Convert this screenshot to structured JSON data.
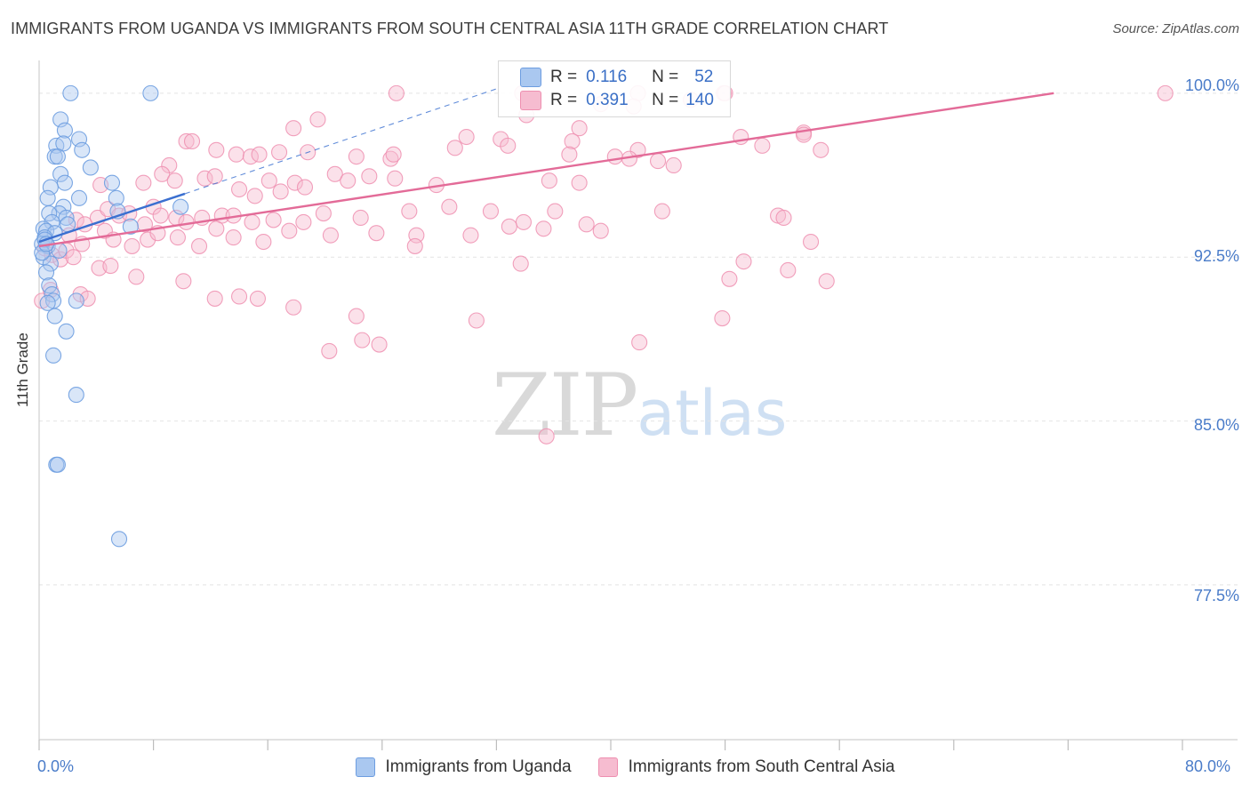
{
  "header": {
    "title": "IMMIGRANTS FROM UGANDA VS IMMIGRANTS FROM SOUTH CENTRAL ASIA 11TH GRADE CORRELATION CHART",
    "source": "Source: ZipAtlas.com"
  },
  "watermark": {
    "zip": "ZIP",
    "atlas": "atlas"
  },
  "legend": {
    "r_label": "R =",
    "n_label": "N =",
    "series1": {
      "r": "0.116",
      "n": "52"
    },
    "series2": {
      "r": "0.391",
      "n": "140"
    }
  },
  "bottom_legend": {
    "series1": "Immigrants from Uganda",
    "series2": "Immigrants from South Central Asia"
  },
  "colors": {
    "series1_fill": "#aac8f0",
    "series1_stroke": "#6d9de0",
    "series1_line": "#3a6fd0",
    "series2_fill": "#f6bcd0",
    "series2_stroke": "#ee8fb0",
    "series2_line": "#e36b98",
    "axis_text": "#4a7cc9",
    "grid": "#e4e4e4"
  },
  "chart_data": {
    "type": "scatter",
    "title": "IMMIGRANTS FROM UGANDA VS IMMIGRANTS FROM SOUTH CENTRAL ASIA 11TH GRADE CORRELATION CHART",
    "xlabel": "",
    "ylabel": "11th Grade",
    "xlim": [
      0,
      80
    ],
    "ylim": [
      70.5,
      101.5
    ],
    "x_tick_labels": [
      "0.0%",
      "80.0%"
    ],
    "y_ticks": [
      77.5,
      85.0,
      92.5,
      100.0
    ],
    "y_tick_labels": [
      "77.5%",
      "85.0%",
      "92.5%",
      "100.0%"
    ],
    "x_tick_marks": [
      0,
      8,
      16,
      24,
      32,
      40,
      48,
      56,
      64,
      72,
      80
    ],
    "series": [
      {
        "name": "Immigrants from Uganda",
        "r": 0.116,
        "n": 52,
        "trend": {
          "x": [
            0.0,
            10.2
          ],
          "y": [
            93.2,
            95.4
          ]
        },
        "trend_extension": {
          "x": [
            10.2,
            32.0
          ],
          "y": [
            95.4,
            100.2
          ]
        },
        "points": [
          [
            2.2,
            100.0
          ],
          [
            7.8,
            100.0
          ],
          [
            1.5,
            98.8
          ],
          [
            1.8,
            98.3
          ],
          [
            2.8,
            97.9
          ],
          [
            1.2,
            97.6
          ],
          [
            1.7,
            97.7
          ],
          [
            3.0,
            97.4
          ],
          [
            1.1,
            97.1
          ],
          [
            1.3,
            97.1
          ],
          [
            3.6,
            96.6
          ],
          [
            1.5,
            96.3
          ],
          [
            5.1,
            95.9
          ],
          [
            1.8,
            95.9
          ],
          [
            0.8,
            95.7
          ],
          [
            0.6,
            95.2
          ],
          [
            2.8,
            95.2
          ],
          [
            5.4,
            95.2
          ],
          [
            1.7,
            94.8
          ],
          [
            9.9,
            94.8
          ],
          [
            5.5,
            94.6
          ],
          [
            1.4,
            94.5
          ],
          [
            0.7,
            94.5
          ],
          [
            1.9,
            94.3
          ],
          [
            0.9,
            94.1
          ],
          [
            2.0,
            94.0
          ],
          [
            6.4,
            93.9
          ],
          [
            0.3,
            93.8
          ],
          [
            0.5,
            93.7
          ],
          [
            1.1,
            93.6
          ],
          [
            0.4,
            93.4
          ],
          [
            0.2,
            93.1
          ],
          [
            0.6,
            93.0
          ],
          [
            1.4,
            92.8
          ],
          [
            0.3,
            92.5
          ],
          [
            0.8,
            92.2
          ],
          [
            0.5,
            91.8
          ],
          [
            0.7,
            91.2
          ],
          [
            0.9,
            90.8
          ],
          [
            1.0,
            90.5
          ],
          [
            0.6,
            90.4
          ],
          [
            2.6,
            90.5
          ],
          [
            1.1,
            89.8
          ],
          [
            1.9,
            89.1
          ],
          [
            1.0,
            88.0
          ],
          [
            2.6,
            86.2
          ],
          [
            1.2,
            83.0
          ],
          [
            1.3,
            83.0
          ],
          [
            5.6,
            79.6
          ],
          [
            0.4,
            93.3
          ],
          [
            0.2,
            92.7
          ],
          [
            0.5,
            93.1
          ]
        ]
      },
      {
        "name": "Immigrants from South Central Asia",
        "r": 0.391,
        "n": 140,
        "trend": {
          "x": [
            0.0,
            71.0
          ],
          "y": [
            93.0,
            100.0
          ]
        },
        "points": [
          [
            25.0,
            100.0
          ],
          [
            33.8,
            100.0
          ],
          [
            41.9,
            100.0
          ],
          [
            47.9,
            100.0
          ],
          [
            48.0,
            100.0
          ],
          [
            78.8,
            100.0
          ],
          [
            45.6,
            99.7
          ],
          [
            39.3,
            99.5
          ],
          [
            41.6,
            99.4
          ],
          [
            34.1,
            99.0
          ],
          [
            19.5,
            98.8
          ],
          [
            17.8,
            98.4
          ],
          [
            37.8,
            98.4
          ],
          [
            29.9,
            98.0
          ],
          [
            32.3,
            97.9
          ],
          [
            37.3,
            97.8
          ],
          [
            53.5,
            98.2
          ],
          [
            53.5,
            98.1
          ],
          [
            49.1,
            98.0
          ],
          [
            50.6,
            97.6
          ],
          [
            29.1,
            97.5
          ],
          [
            32.8,
            97.6
          ],
          [
            41.9,
            97.4
          ],
          [
            54.7,
            97.4
          ],
          [
            10.3,
            97.8
          ],
          [
            10.7,
            97.8
          ],
          [
            12.4,
            97.4
          ],
          [
            13.8,
            97.2
          ],
          [
            14.8,
            97.1
          ],
          [
            15.4,
            97.2
          ],
          [
            16.8,
            97.3
          ],
          [
            18.8,
            97.3
          ],
          [
            22.2,
            97.1
          ],
          [
            24.6,
            97.0
          ],
          [
            24.8,
            97.2
          ],
          [
            37.1,
            97.2
          ],
          [
            40.3,
            97.1
          ],
          [
            41.3,
            97.0
          ],
          [
            43.3,
            96.9
          ],
          [
            44.4,
            96.7
          ],
          [
            4.3,
            95.8
          ],
          [
            7.3,
            95.9
          ],
          [
            9.1,
            96.7
          ],
          [
            8.6,
            96.3
          ],
          [
            9.5,
            96.0
          ],
          [
            11.6,
            96.1
          ],
          [
            12.3,
            96.2
          ],
          [
            14.0,
            95.6
          ],
          [
            15.1,
            95.3
          ],
          [
            16.1,
            96.0
          ],
          [
            16.9,
            95.5
          ],
          [
            17.9,
            95.9
          ],
          [
            18.6,
            95.7
          ],
          [
            20.7,
            96.3
          ],
          [
            21.6,
            96.0
          ],
          [
            23.1,
            96.2
          ],
          [
            24.9,
            96.1
          ],
          [
            27.8,
            95.8
          ],
          [
            35.7,
            96.0
          ],
          [
            37.8,
            95.9
          ],
          [
            2.6,
            94.2
          ],
          [
            3.2,
            94.0
          ],
          [
            4.1,
            94.3
          ],
          [
            4.8,
            94.7
          ],
          [
            5.6,
            94.4
          ],
          [
            6.3,
            94.5
          ],
          [
            7.4,
            94.0
          ],
          [
            8.0,
            94.8
          ],
          [
            8.5,
            94.4
          ],
          [
            9.6,
            94.3
          ],
          [
            10.3,
            94.1
          ],
          [
            11.4,
            94.3
          ],
          [
            12.8,
            94.4
          ],
          [
            13.6,
            94.4
          ],
          [
            14.9,
            94.1
          ],
          [
            16.4,
            94.2
          ],
          [
            18.5,
            94.1
          ],
          [
            19.9,
            94.5
          ],
          [
            22.5,
            94.3
          ],
          [
            25.9,
            94.6
          ],
          [
            28.7,
            94.8
          ],
          [
            31.6,
            94.6
          ],
          [
            33.9,
            94.1
          ],
          [
            36.1,
            94.6
          ],
          [
            38.3,
            94.0
          ],
          [
            43.6,
            94.6
          ],
          [
            51.7,
            94.4
          ],
          [
            52.1,
            94.3
          ],
          [
            2.1,
            93.5
          ],
          [
            3.0,
            93.1
          ],
          [
            4.6,
            93.7
          ],
          [
            5.2,
            93.3
          ],
          [
            6.5,
            93.0
          ],
          [
            7.6,
            93.3
          ],
          [
            8.3,
            93.6
          ],
          [
            9.7,
            93.4
          ],
          [
            11.2,
            93.0
          ],
          [
            12.4,
            93.8
          ],
          [
            13.6,
            93.4
          ],
          [
            15.7,
            93.2
          ],
          [
            17.5,
            93.7
          ],
          [
            20.4,
            93.5
          ],
          [
            23.6,
            93.6
          ],
          [
            26.4,
            93.5
          ],
          [
            30.2,
            93.5
          ],
          [
            32.9,
            93.9
          ],
          [
            35.3,
            93.8
          ],
          [
            39.3,
            93.7
          ],
          [
            0.4,
            92.9
          ],
          [
            0.9,
            92.6
          ],
          [
            1.5,
            92.4
          ],
          [
            1.9,
            92.8
          ],
          [
            2.4,
            92.5
          ],
          [
            4.2,
            92.0
          ],
          [
            5.0,
            92.1
          ],
          [
            6.8,
            91.6
          ],
          [
            10.1,
            91.4
          ],
          [
            12.3,
            90.6
          ],
          [
            14.0,
            90.7
          ],
          [
            15.3,
            90.6
          ],
          [
            17.8,
            90.2
          ],
          [
            22.2,
            89.8
          ],
          [
            30.6,
            89.6
          ],
          [
            47.8,
            89.7
          ],
          [
            48.3,
            91.5
          ],
          [
            55.1,
            91.4
          ],
          [
            42.0,
            88.6
          ],
          [
            23.8,
            88.5
          ],
          [
            20.3,
            88.2
          ],
          [
            22.6,
            88.7
          ],
          [
            49.3,
            92.3
          ],
          [
            52.4,
            91.9
          ],
          [
            33.7,
            92.2
          ],
          [
            54.0,
            93.2
          ],
          [
            0.8,
            91.0
          ],
          [
            2.9,
            90.8
          ],
          [
            3.4,
            90.6
          ],
          [
            26.3,
            93.0
          ],
          [
            35.5,
            84.3
          ],
          [
            0.2,
            90.5
          ]
        ]
      }
    ]
  }
}
